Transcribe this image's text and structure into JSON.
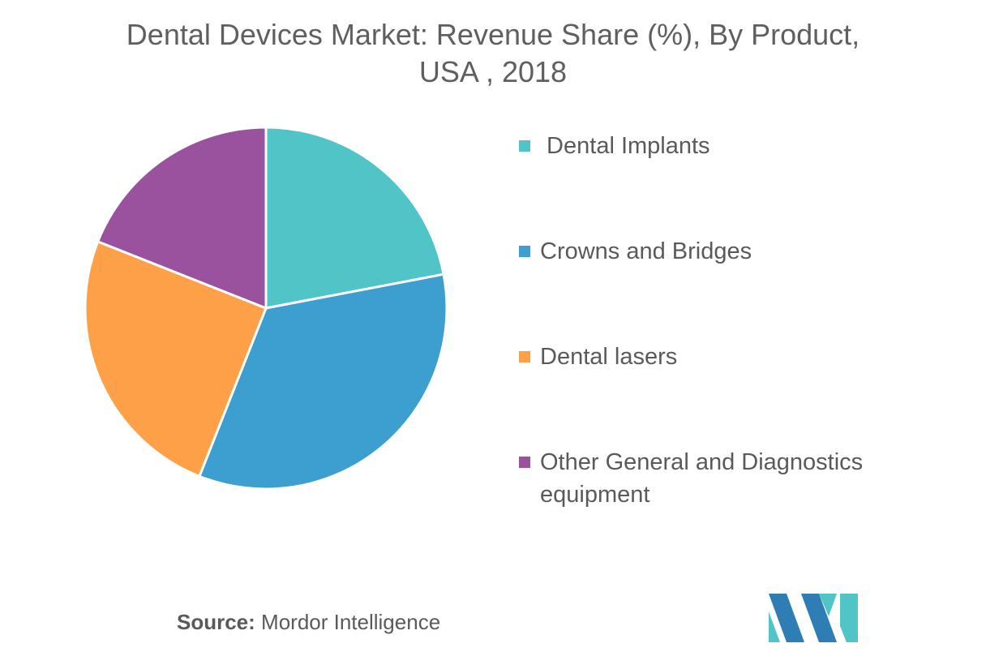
{
  "chart_data": {
    "type": "pie",
    "title_lines": [
      "Dental Devices Market: Revenue Share (%), By Product,",
      "USA , 2018"
    ],
    "slices": [
      {
        "label": " Dental Implants",
        "value": 22,
        "color": "#50c4c7"
      },
      {
        "label": "Crowns and Bridges",
        "value": 34,
        "color": "#3d9ed0"
      },
      {
        "label": "Dental lasers",
        "value": 25,
        "color": "#fea048"
      },
      {
        "label": "Other General and Diagnostics equipment",
        "value": 19,
        "color": "#9a519e"
      }
    ],
    "legend_position": "right"
  },
  "source": {
    "label": "Source:",
    "text": " Mordor Intelligence"
  },
  "logo": {
    "name": "mordor-intelligence-logo",
    "colors": [
      "#2e7db5",
      "#50c4c7"
    ]
  }
}
